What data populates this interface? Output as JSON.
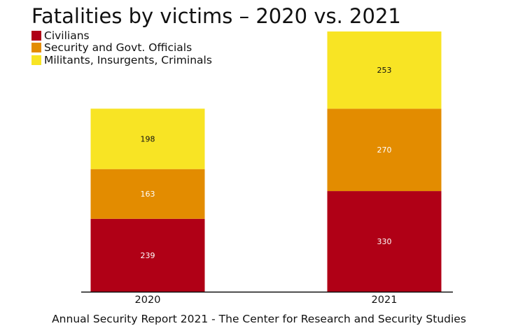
{
  "chart_data": {
    "type": "bar",
    "stacked": true,
    "title": "Fatalities by victims – 2020 vs. 2021",
    "categories": [
      "2020",
      "2021"
    ],
    "series": [
      {
        "name": "Civilians",
        "color": "#b00016",
        "label_color": "#ffffff",
        "values": [
          239,
          330
        ]
      },
      {
        "name": "Security and Govt. Officials",
        "color": "#e38c00",
        "label_color": "#ffffff",
        "values": [
          163,
          270
        ]
      },
      {
        "name": "Militants, Insurgents, Criminals",
        "color": "#f8e424",
        "label_color": "#111111",
        "values": [
          198,
          253
        ]
      }
    ],
    "ylim": [
      0,
      853
    ],
    "grid": false,
    "legend_position": "top-left",
    "xlabel": "",
    "ylabel": ""
  },
  "footer": "Annual Security Report 2021 - The Center for Research and Security Studies"
}
